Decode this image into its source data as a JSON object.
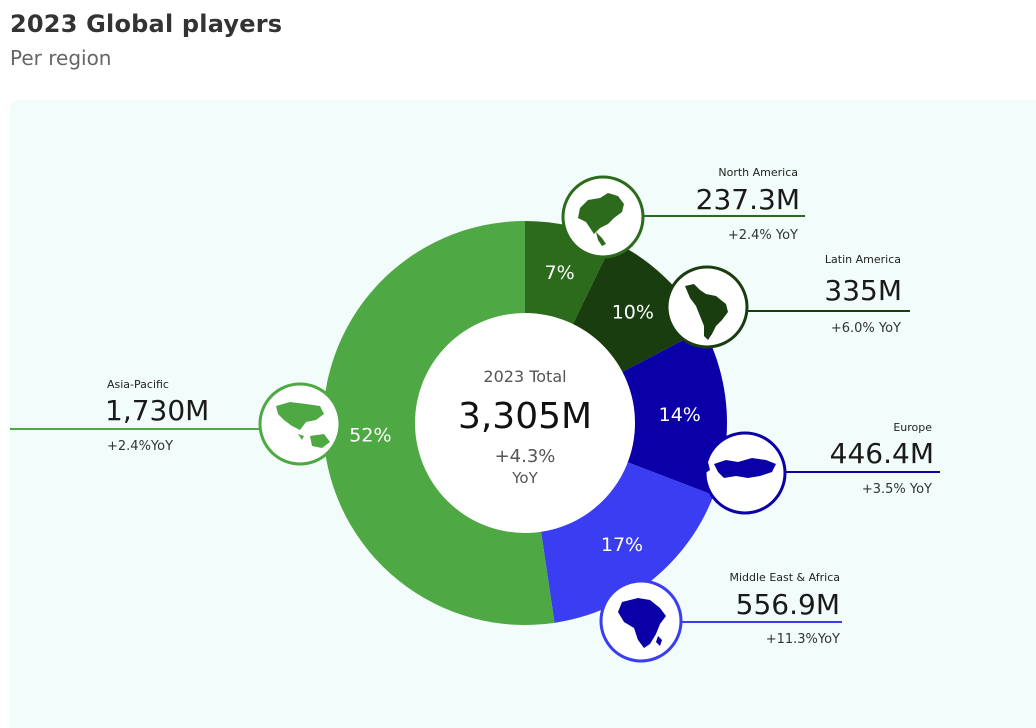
{
  "header": {
    "title": "2023 Global players",
    "subtitle": "Per region"
  },
  "chart_data": {
    "type": "pie",
    "title": "2023 Global players",
    "subtitle": "Per region",
    "center": {
      "title": "2023 Total",
      "value": "3,305M",
      "yoy_line1": "+4.3%",
      "yoy_line2": "YoY"
    },
    "slices": [
      {
        "region": "North America",
        "value_label": "237.3M",
        "value": 237.3,
        "share": 7,
        "share_label": "7%",
        "yoy": "+2.4% YoY",
        "color": "#2d6b1c",
        "icon": "north-america-map-icon"
      },
      {
        "region": "Latin America",
        "value_label": "335M",
        "value": 335,
        "share": 10,
        "share_label": "10%",
        "yoy": "+6.0% YoY",
        "color": "#1a3d10",
        "icon": "latin-america-map-icon"
      },
      {
        "region": "Europe",
        "value_label": "446.4M",
        "value": 446.4,
        "share": 14,
        "share_label": "14%",
        "yoy": "+3.5% YoY",
        "color": "#0b00a8",
        "icon": "europe-map-icon"
      },
      {
        "region": "Middle East & Africa",
        "value_label": "556.9M",
        "value": 556.9,
        "share": 17,
        "share_label": "17%",
        "yoy": "+11.3%YoY",
        "color": "#3a3df2",
        "icon": "africa-map-icon"
      },
      {
        "region": "Asia-Pacific",
        "value_label": "1,730M",
        "value": 1730,
        "share": 52,
        "share_label": "52%",
        "yoy": "+2.4%YoY",
        "color": "#4ea843",
        "icon": "asia-pacific-map-icon"
      }
    ],
    "colors": {
      "north_america_line": "#2d6b1c",
      "latin_america_line": "#1a3d10",
      "europe_line": "#0b00a8",
      "mea_line": "#3a3df2",
      "apac_line": "#4ea843"
    }
  }
}
